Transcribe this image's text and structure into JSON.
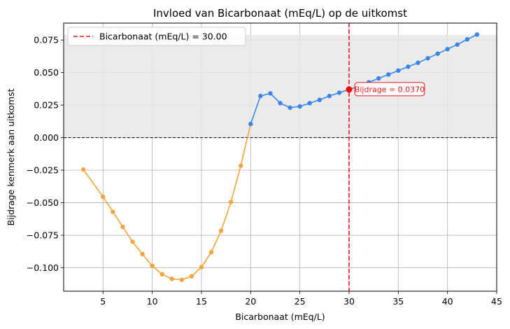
{
  "chart_data": {
    "type": "line",
    "title": "Invloed van Bicarbonaat (mEq/L) op de uitkomst",
    "xlabel": "Bicarbonaat (mEq/L)",
    "ylabel": "Bijdrage kenmerk aan uitkomst",
    "xlim": [
      1,
      45
    ],
    "ylim": [
      -0.118,
      0.088
    ],
    "xticks": [
      5,
      10,
      15,
      20,
      25,
      30,
      35,
      40,
      45
    ],
    "yticks": [
      -0.1,
      -0.075,
      -0.05,
      -0.025,
      0.0,
      0.025,
      0.05,
      0.075
    ],
    "ytick_labels": [
      "−0.100",
      "−0.075",
      "−0.050",
      "−0.025",
      "0.000",
      "0.025",
      "0.050",
      "0.075"
    ],
    "grid": true,
    "shaded_band": {
      "y_from": 0.0,
      "y_to": 0.079,
      "color": "#e8e8e8"
    },
    "zero_line": {
      "y": 0.0,
      "style": "dashed",
      "color": "#000000"
    },
    "series": [
      {
        "color": "#f4a43d",
        "x": [
          3,
          5,
          6,
          7,
          8,
          9,
          10,
          11,
          12,
          13,
          14,
          15,
          16,
          17,
          18,
          19,
          20
        ],
        "y": [
          -0.0245,
          -0.0455,
          -0.057,
          -0.0685,
          -0.08,
          -0.0895,
          -0.0985,
          -0.105,
          -0.1085,
          -0.1092,
          -0.1065,
          -0.0995,
          -0.088,
          -0.0715,
          -0.0495,
          -0.0215,
          0.0105
        ]
      },
      {
        "color": "#3a86e8",
        "x": [
          20,
          21,
          22,
          23,
          24,
          25,
          26,
          27,
          28,
          29,
          30,
          31,
          32,
          33,
          34,
          35,
          36,
          37,
          38,
          39,
          40,
          41,
          42,
          43
        ],
        "y": [
          0.0105,
          0.032,
          0.034,
          0.0265,
          0.023,
          0.024,
          0.0265,
          0.029,
          0.032,
          0.0345,
          0.037,
          0.0395,
          0.0425,
          0.0455,
          0.0485,
          0.0515,
          0.0545,
          0.0575,
          0.061,
          0.0645,
          0.068,
          0.0715,
          0.0755,
          0.0792
        ]
      }
    ],
    "marker": {
      "x": 30,
      "y": 0.037,
      "color": "#ff0000"
    },
    "vline": {
      "x": 30,
      "color": "#e8191c",
      "style": "dashed"
    },
    "legend": {
      "placement": "top-left",
      "entries": [
        "Bicarbonaat (mEq/L) = 30.00"
      ]
    },
    "annotation": {
      "text": "Bijdrage = 0.0370",
      "x": 30,
      "y": 0.037,
      "color": "#e8191c"
    }
  }
}
